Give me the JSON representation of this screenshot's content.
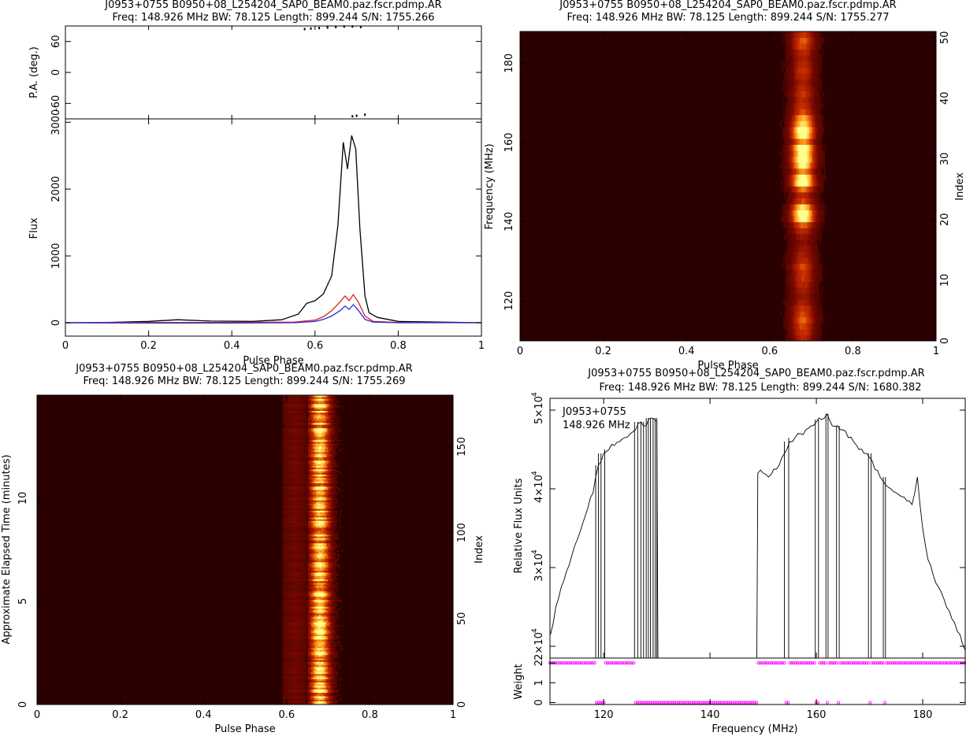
{
  "colors": {
    "profile_total": "#000000",
    "profile_linear": "#e0241c",
    "profile_circular": "#2a2ad8",
    "weight_markers": "#ff00ff",
    "heat_low": "#2b0000",
    "heat_mid": "#b82400",
    "heat_high": "#ffff80"
  },
  "chart_data": [
    {
      "id": "profile",
      "type": "line",
      "title": "J0953+0755  B0950+08_L254204_SAP0_BEAM0.paz.fscr.pdmp.AR",
      "subtitle": "Freq: 148.926 MHz BW: 78.125 Length: 899.244 S/N: 1755.266",
      "xlabel": "Pulse Phase",
      "xlim": [
        0,
        1
      ],
      "xticks": [
        "0",
        "0.2",
        "0.4",
        "0.6",
        "0.8",
        "1"
      ],
      "pa_panel": {
        "ylabel": "P.A. (deg.)",
        "ylim": [
          -90,
          90
        ],
        "yticks": [
          "-60",
          "0",
          "60"
        ],
        "points": [
          [
            0.575,
            84
          ],
          [
            0.59,
            85
          ],
          [
            0.61,
            86
          ],
          [
            0.63,
            87
          ],
          [
            0.65,
            88
          ],
          [
            0.67,
            89
          ],
          [
            0.69,
            89
          ],
          [
            0.71,
            88
          ],
          [
            0.72,
            -82
          ],
          [
            0.7,
            -84
          ],
          [
            0.69,
            -85
          ]
        ]
      },
      "flux_panel": {
        "ylabel": "Flux",
        "ylim": [
          -200,
          3050
        ],
        "yticks": [
          "0",
          "1000",
          "2000",
          "3000"
        ],
        "series": [
          {
            "key": "total",
            "x": [
              0,
              0.1,
              0.2,
              0.27,
              0.35,
              0.45,
              0.52,
              0.56,
              0.58,
              0.6,
              0.62,
              0.64,
              0.655,
              0.668,
              0.678,
              0.688,
              0.698,
              0.708,
              0.72,
              0.73,
              0.75,
              0.8,
              0.9,
              1.0
            ],
            "values": [
              0,
              5,
              20,
              45,
              25,
              20,
              45,
              130,
              290,
              330,
              430,
              700,
              1450,
              2700,
              2300,
              2800,
              2600,
              1400,
              400,
              150,
              80,
              20,
              10,
              0
            ]
          },
          {
            "key": "linear",
            "x": [
              0,
              0.2,
              0.4,
              0.55,
              0.6,
              0.62,
              0.64,
              0.66,
              0.672,
              0.682,
              0.692,
              0.705,
              0.72,
              0.74,
              0.8,
              1.0
            ],
            "values": [
              0,
              5,
              5,
              10,
              40,
              90,
              180,
              310,
              400,
              330,
              420,
              300,
              100,
              20,
              5,
              0
            ]
          },
          {
            "key": "circular",
            "x": [
              0,
              0.2,
              0.4,
              0.55,
              0.6,
              0.62,
              0.64,
              0.66,
              0.672,
              0.682,
              0.692,
              0.705,
              0.72,
              0.74,
              0.8,
              1.0
            ],
            "values": [
              0,
              -5,
              -5,
              0,
              20,
              50,
              100,
              180,
              250,
              200,
              270,
              180,
              50,
              10,
              0,
              0
            ]
          }
        ]
      }
    },
    {
      "id": "phase_freq",
      "type": "heatmap",
      "title": "J0953+0755  B0950+08_L254204_SAP0_BEAM0.paz.fscr.pdmp.AR",
      "subtitle": "Freq: 148.926 MHz BW: 78.125 Length: 899.244 S/N: 1755.277",
      "xlabel": "Pulse Phase",
      "ylabel": "Frequency (MHz)",
      "y2label": "Index",
      "xlim": [
        0,
        1
      ],
      "ylim": [
        109.9,
        188.0
      ],
      "y2lim": [
        0,
        51
      ],
      "xticks": [
        "0",
        "0.2",
        "0.4",
        "0.6",
        "0.8",
        "1"
      ],
      "yticks": [
        "120",
        "140",
        "160",
        "180"
      ],
      "y2ticks": [
        "0",
        "10",
        "20",
        "30",
        "40",
        "50"
      ],
      "pulse_center": 0.68,
      "pulse_width": 0.045,
      "row_intensity": [
        0.45,
        0.5,
        0.55,
        0.6,
        0.55,
        0.5,
        0.4,
        0.35,
        0.4,
        0.45,
        0.5,
        0.5,
        0.55,
        0.45,
        0.4,
        0.35,
        0.3,
        0.35,
        0.45,
        0.6,
        0.95,
        1.0,
        0.85,
        0.55,
        0.45,
        0.65,
        1.0,
        0.95,
        0.7,
        0.9,
        1.0,
        0.95,
        1.0,
        0.7,
        0.95,
        1.0,
        0.85,
        0.75,
        0.55,
        0.5,
        0.45,
        0.5,
        0.45,
        0.4,
        0.45,
        0.5,
        0.45,
        0.4,
        0.45,
        0.55,
        0.6,
        0.5
      ]
    },
    {
      "id": "phase_time",
      "type": "heatmap",
      "title": "J0953+0755  B0950+08_L254204_SAP0_BEAM0.paz.fscr.pdmp.AR",
      "subtitle": "Freq: 148.926 MHz BW: 78.125 Length: 899.244 S/N: 1755.269",
      "xlabel": "Pulse Phase",
      "ylabel": "Approximate Elapsed Time (minutes)",
      "y2label": "Index",
      "xlim": [
        0,
        1
      ],
      "ylim": [
        0,
        14.99
      ],
      "y2lim": [
        0,
        180
      ],
      "xticks": [
        "0",
        "0.2",
        "0.4",
        "0.6",
        "0.8",
        "1"
      ],
      "yticks": [
        "0",
        "5",
        "10"
      ],
      "y2ticks": [
        "0",
        "50",
        "100",
        "150"
      ],
      "pulse_center": 0.68,
      "pulse_width": 0.04,
      "rows": 180
    },
    {
      "id": "bandpass",
      "type": "line",
      "title": "J0953+0755  B0950+08_L254204_SAP0_BEAM0.paz.fscr.pdmp.AR",
      "subtitle": "Freq: 148.926 MHz BW: 78.125 Length: 899.244 S/N: 1680.382",
      "annotation": [
        "J0953+0755",
        "148.926 MHz"
      ],
      "xlabel": "Frequency (MHz)",
      "xlim": [
        109.9,
        188.0
      ],
      "xticks": [
        "120",
        "140",
        "160",
        "180"
      ],
      "flux_panel": {
        "ylabel": "Relative Flux Units",
        "ylim": [
          18500,
          51500
        ],
        "ytick_values": [
          20000,
          30000,
          40000,
          50000
        ],
        "x": [
          110,
          111,
          112,
          113,
          114,
          115,
          116,
          117,
          118,
          119,
          120,
          121,
          122,
          123,
          124,
          125,
          126,
          127,
          128,
          129,
          130,
          149,
          150,
          151,
          152,
          153,
          154,
          155,
          156,
          157,
          158,
          159,
          160,
          161,
          162,
          163,
          164,
          165,
          166,
          167,
          168,
          169,
          170,
          171,
          172,
          173,
          174,
          175,
          176,
          177,
          178,
          179,
          180,
          181,
          182,
          183,
          184,
          185,
          186,
          187,
          188
        ],
        "values": [
          21500,
          25000,
          27500,
          29500,
          31500,
          33500,
          35500,
          37500,
          39500,
          43000,
          44500,
          45000,
          45500,
          46000,
          46500,
          47000,
          47500,
          48500,
          48000,
          49000,
          48500,
          42000,
          42000,
          41500,
          42500,
          43000,
          44500,
          46000,
          46500,
          47000,
          47500,
          48000,
          48500,
          48800,
          49500,
          48000,
          48000,
          47500,
          46500,
          46000,
          45000,
          44500,
          44000,
          42500,
          41500,
          40500,
          40000,
          39500,
          39000,
          38500,
          38000,
          41500,
          35000,
          31000,
          29000,
          27500,
          26000,
          24500,
          23000,
          21500,
          19500
        ],
        "dropouts": [
          [
            118.5,
            119.0
          ],
          [
            119.5,
            120.2
          ],
          [
            125.8,
            126.4
          ],
          [
            127.0,
            127.5
          ],
          [
            128.0,
            128.4
          ],
          [
            128.8,
            129.3
          ],
          [
            129.7,
            130.0
          ],
          [
            154.0,
            154.8
          ],
          [
            159.8,
            160.4
          ],
          [
            161.8,
            162.2
          ],
          [
            163.8,
            164.3
          ],
          [
            169.8,
            170.3
          ],
          [
            172.6,
            173.0
          ]
        ]
      },
      "weight_panel": {
        "ylabel": "Weight",
        "ylim": [
          -0.1,
          2.25
        ],
        "yticks": [
          "0",
          "1",
          "2"
        ],
        "zero_ranges": [
          [
            118.5,
            120.2
          ],
          [
            125.8,
            130.0
          ],
          [
            130.0,
            149.0
          ],
          [
            154.0,
            154.8
          ],
          [
            159.8,
            160.4
          ],
          [
            161.8,
            162.2
          ],
          [
            163.8,
            164.3
          ],
          [
            169.8,
            170.3
          ],
          [
            172.6,
            173.0
          ]
        ]
      }
    }
  ]
}
